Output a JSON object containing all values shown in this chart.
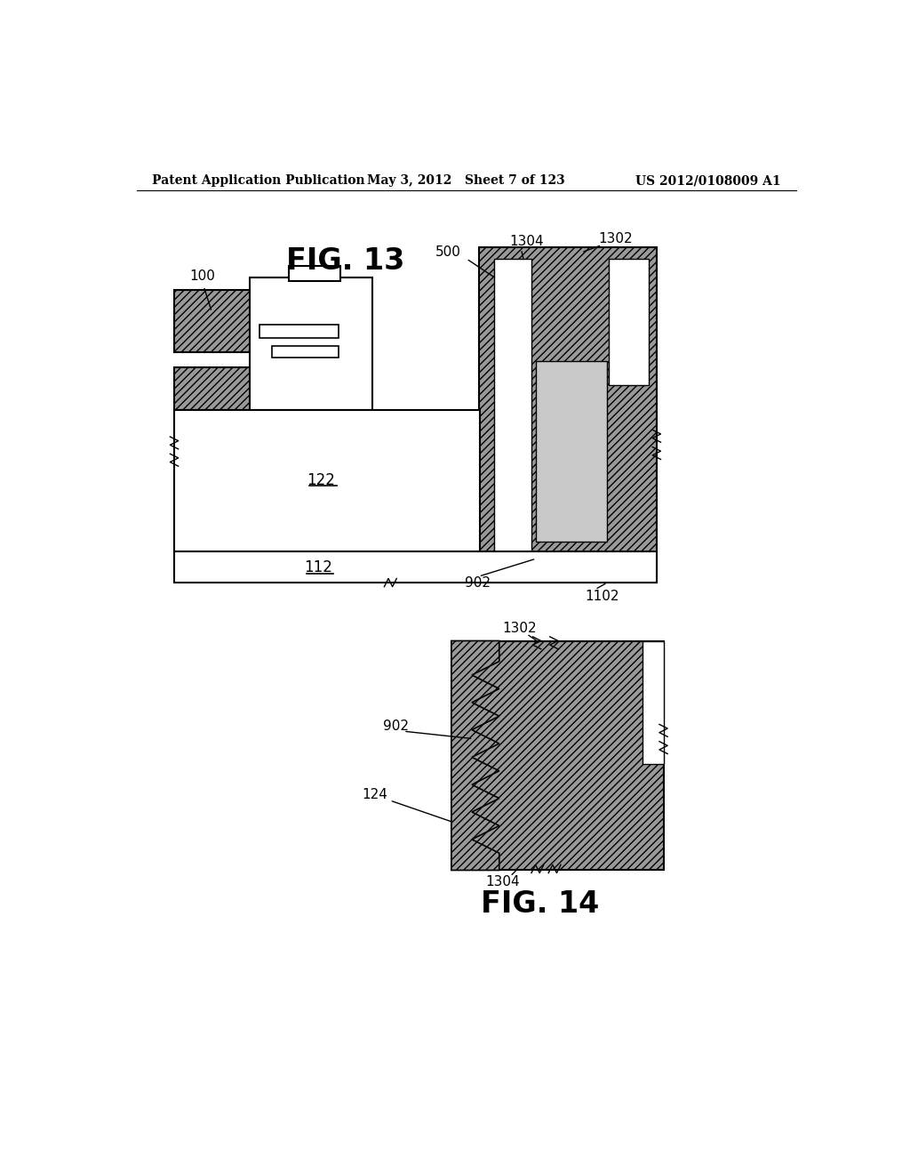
{
  "background_color": "#ffffff",
  "header_left": "Patent Application Publication",
  "header_center": "May 3, 2012   Sheet 7 of 123",
  "header_right": "US 2012/0108009 A1",
  "fig13_label": "FIG. 13",
  "fig14_label": "FIG. 14",
  "hatch_color": "#777777",
  "light_gray": "#c8c8c8",
  "black": "#000000",
  "white": "#ffffff",
  "label_100": "100",
  "label_122": "122",
  "label_112": "112",
  "label_500": "500",
  "label_902": "902",
  "label_1102": "1102",
  "label_1302": "1302",
  "label_1304": "1304",
  "label_124": "124",
  "label_902b": "902",
  "label_1302b": "1302",
  "label_1304b": "1304"
}
